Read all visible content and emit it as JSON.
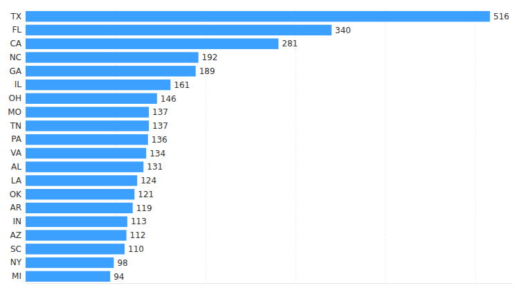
{
  "chart_data": {
    "type": "bar",
    "orientation": "horizontal",
    "categories": [
      "TX",
      "FL",
      "CA",
      "NC",
      "GA",
      "IL",
      "OH",
      "MO",
      "TN",
      "PA",
      "VA",
      "AL",
      "LA",
      "OK",
      "AR",
      "IN",
      "AZ",
      "SC",
      "NY",
      "MI"
    ],
    "values": [
      516,
      340,
      281,
      192,
      189,
      161,
      146,
      137,
      137,
      136,
      134,
      131,
      124,
      121,
      119,
      113,
      112,
      110,
      98,
      94
    ],
    "color": "#3ba0ff",
    "xlim": [
      0,
      540
    ],
    "xticks": [
      0,
      100,
      200,
      300,
      400,
      500
    ],
    "grid": true,
    "data_labels": true,
    "tick_labels": "y"
  }
}
